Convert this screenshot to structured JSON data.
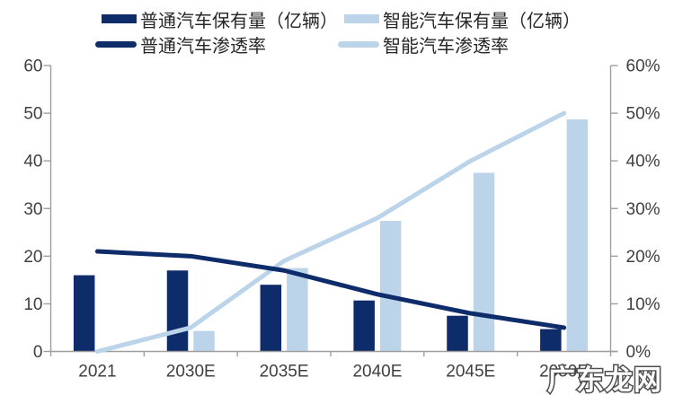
{
  "legend": {
    "items": [
      {
        "label": "普通汽车保有量（亿辆）",
        "type": "bar",
        "color": "#0e2c69"
      },
      {
        "label": "智能汽车保有量（亿辆）",
        "type": "bar",
        "color": "#bcd4ea"
      },
      {
        "label": "普通汽车渗透率",
        "type": "line",
        "color": "#0e2c69"
      },
      {
        "label": "智能汽车渗透率",
        "type": "line",
        "color": "#bcd4ea"
      }
    ]
  },
  "chart_data": {
    "type": "bar+line combo (dual axis)",
    "categories": [
      "2021",
      "2030E",
      "2035E",
      "2040E",
      "2045E",
      "2050E"
    ],
    "bar_series": [
      {
        "name": "普通汽车保有量（亿辆）",
        "axis": "left",
        "color": "#0e2c69",
        "values": [
          16,
          17,
          14,
          10.7,
          7.5,
          4.7
        ]
      },
      {
        "name": "智能汽车保有量（亿辆）",
        "axis": "left",
        "color": "#bcd4ea",
        "values": [
          0,
          4.3,
          17.5,
          27.4,
          37.5,
          48.7
        ]
      }
    ],
    "line_series": [
      {
        "name": "普通汽车渗透率",
        "axis": "right",
        "color": "#0e2c69",
        "values_pct": [
          21,
          20,
          17,
          12,
          8,
          5
        ]
      },
      {
        "name": "智能汽车渗透率",
        "axis": "right",
        "color": "#bcd4ea",
        "values_pct": [
          0,
          5,
          19,
          28,
          40,
          50
        ]
      }
    ],
    "left_axis": {
      "min": 0,
      "max": 60,
      "step": 10,
      "tick_labels": [
        "0",
        "10",
        "20",
        "30",
        "40",
        "50",
        "60"
      ]
    },
    "right_axis": {
      "min": 0,
      "max": 60,
      "step": 10,
      "tick_labels": [
        "0%",
        "10%",
        "20%",
        "30%",
        "40%",
        "50%",
        "60%"
      ]
    },
    "grid": false,
    "legend_position": "top"
  },
  "watermark": {
    "text": "广东龙网"
  },
  "colors": {
    "navy": "#0e2c69",
    "light_blue": "#bcd4ea",
    "axis_gray": "#9e9e9e",
    "label_gray": "#404040",
    "legend_text": "#262626",
    "watermark_fill": "#ffffff",
    "watermark_outline": "#4f4f4f",
    "background": "#ffffff"
  }
}
